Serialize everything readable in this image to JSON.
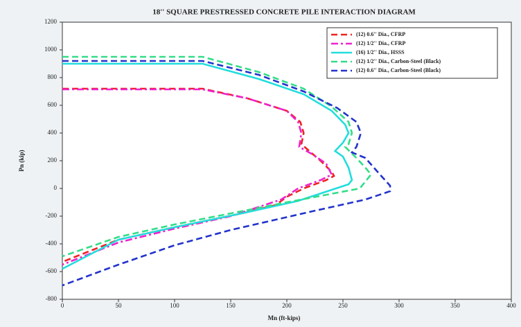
{
  "chart_data": {
    "type": "line",
    "title": "18'' SQUARE PRESTRESSED CONCRETE PILE INTERACTION DIAGRAM",
    "x_label": "Mn (ft-kips)",
    "y_label": "Pn (kip)",
    "xlim": [
      0,
      400
    ],
    "xticks": [
      0,
      50,
      100,
      150,
      200,
      250,
      300,
      350,
      400
    ],
    "ylim": [
      -800,
      1200
    ],
    "yticks": [
      -800,
      -600,
      -400,
      -200,
      0,
      200,
      400,
      600,
      800,
      1000,
      1200
    ],
    "legend": "upper right",
    "series": [
      {
        "name": "(12) 0.6'' Dia., CFRP",
        "color": "#ee2222",
        "linestyle": "dashed",
        "x": [
          0,
          125,
          165,
          200,
          212,
          215,
          213,
          220,
          230,
          240,
          242,
          235,
          215,
          200,
          190,
          160,
          100,
          50,
          0
        ],
        "values": [
          720,
          720,
          650,
          560,
          480,
          400,
          320,
          270,
          200,
          120,
          90,
          60,
          0,
          -60,
          -120,
          -180,
          -280,
          -370,
          -530
        ]
      },
      {
        "name": "(12) 1/2'' Dia., CFRP",
        "color": "#ee22cc",
        "linestyle": "dashdot",
        "x": [
          0,
          125,
          165,
          200,
          210,
          213,
          211,
          222,
          235,
          240,
          230,
          210,
          195,
          150,
          100,
          50,
          0
        ],
        "values": [
          715,
          715,
          650,
          560,
          480,
          400,
          300,
          250,
          180,
          100,
          60,
          0,
          -80,
          -200,
          -290,
          -390,
          -550
        ]
      },
      {
        "name": "(16) 1/2'' Dia., HSSS",
        "color": "#22dddd",
        "linestyle": "solid",
        "x": [
          0,
          125,
          175,
          215,
          240,
          252,
          255,
          250,
          243,
          250,
          255,
          258,
          255,
          210,
          160,
          100,
          50,
          0
        ],
        "values": [
          900,
          900,
          790,
          680,
          560,
          460,
          400,
          330,
          270,
          230,
          150,
          60,
          30,
          -90,
          -180,
          -280,
          -370,
          -580
        ]
      },
      {
        "name": "(12) 1/2'' Dia., Carbon-Steel (Black)",
        "color": "#33dd88",
        "linestyle": "dashed",
        "x": [
          0,
          125,
          175,
          215,
          240,
          255,
          258,
          255,
          252,
          262,
          270,
          275,
          265,
          200,
          150,
          100,
          50,
          0
        ],
        "values": [
          950,
          950,
          840,
          720,
          590,
          480,
          400,
          320,
          300,
          220,
          150,
          100,
          0,
          -100,
          -180,
          -260,
          -350,
          -490
        ]
      },
      {
        "name": "(12) 0.6'' Dia., Carbon-Steel (Black)",
        "color": "#2233cc",
        "linestyle": "dashed",
        "x": [
          0,
          125,
          175,
          215,
          245,
          262,
          266,
          262,
          258,
          270,
          283,
          292,
          292,
          270,
          220,
          150,
          100,
          50,
          0
        ],
        "values": [
          920,
          920,
          820,
          700,
          580,
          480,
          400,
          300,
          260,
          220,
          100,
          20,
          -20,
          -80,
          -170,
          -300,
          -410,
          -550,
          -700
        ]
      }
    ]
  }
}
